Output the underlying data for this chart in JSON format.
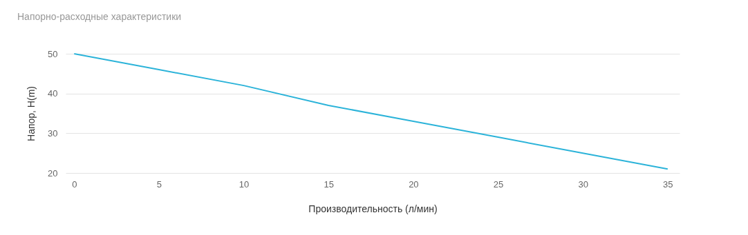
{
  "chart_data": {
    "type": "line",
    "title": "Напорно-расходные характеристики",
    "xlabel": "Производительность (л/мин)",
    "ylabel": "Напор, H(m)",
    "x": [
      0,
      5,
      10,
      15,
      20,
      25,
      30,
      35
    ],
    "series": [
      {
        "color": "#2bb3d9",
        "values": [
          50,
          46,
          42,
          37,
          33,
          29,
          25,
          21
        ]
      }
    ],
    "xlim": [
      -0.5,
      35.7
    ],
    "xticks": [
      0,
      5,
      10,
      15,
      20,
      25,
      30,
      35
    ],
    "ylim": [
      20,
      50
    ],
    "yticks": [
      20,
      30,
      40,
      50
    ],
    "grid": "y",
    "legend": false,
    "marker": "none",
    "line_style": "solid"
  }
}
